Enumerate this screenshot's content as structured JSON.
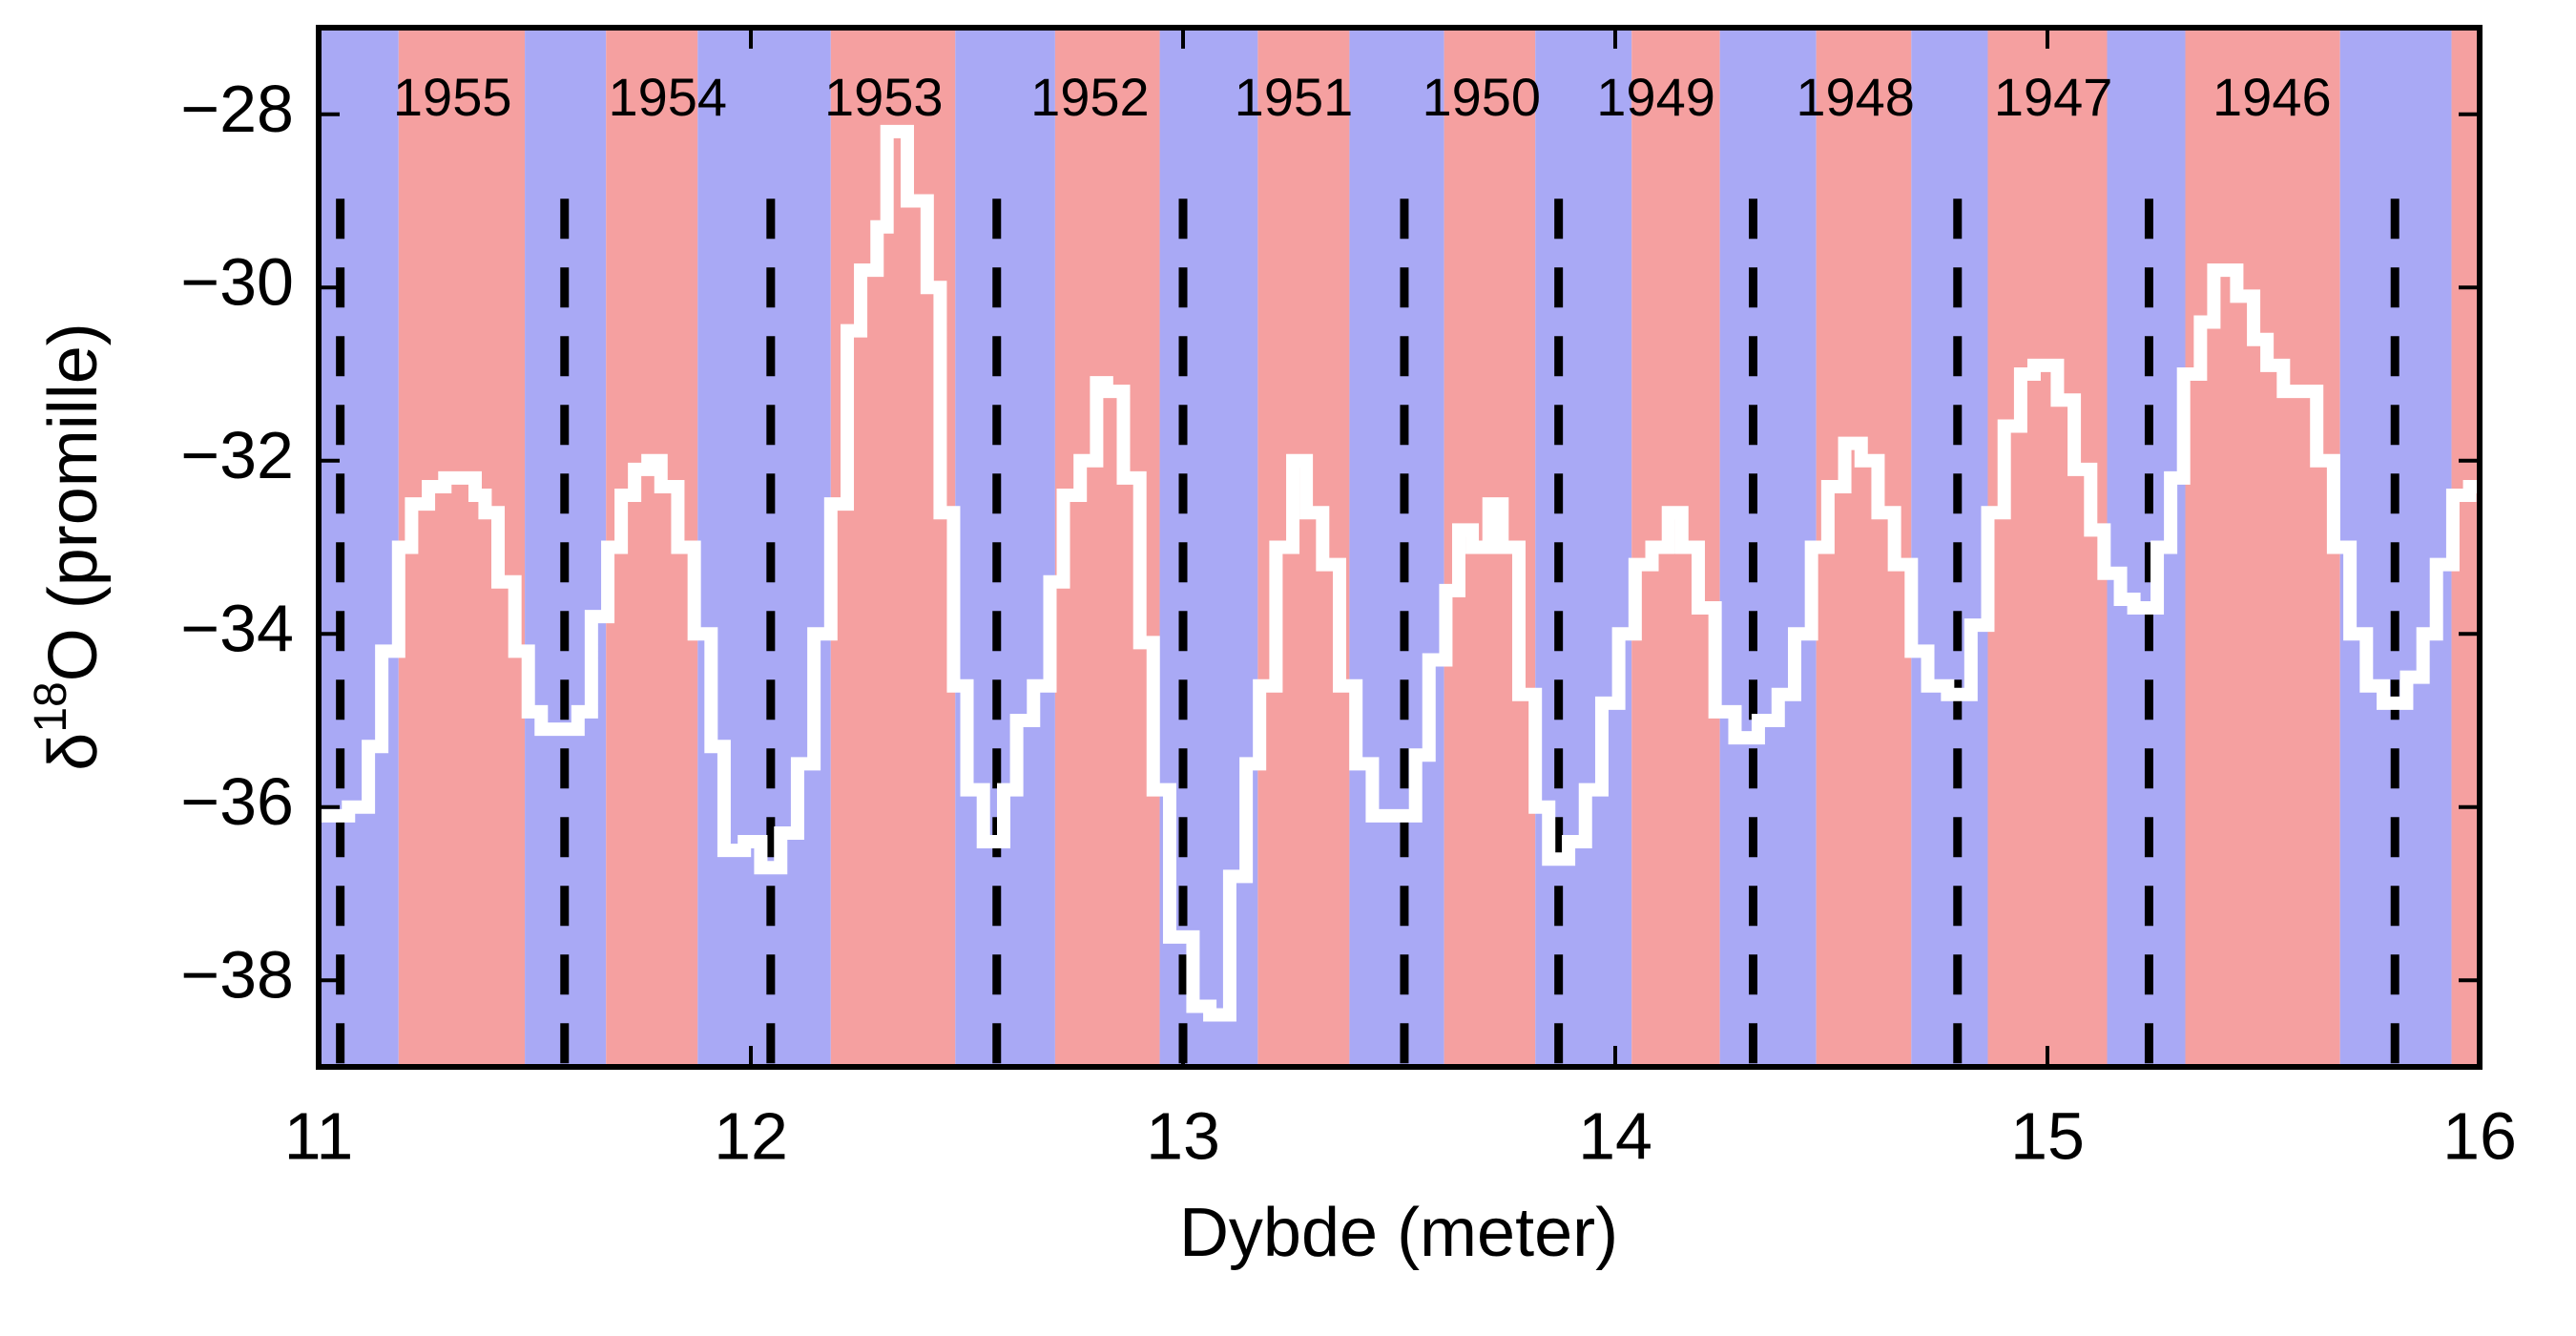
{
  "chart_data": {
    "type": "step",
    "xlabel": "Dybde (meter)",
    "ylabel": {
      "prefix": "δ",
      "superscript": "18",
      "text": "O (promille)"
    },
    "xlim": [
      11,
      16
    ],
    "ylim": [
      -39,
      -27
    ],
    "xticks": [
      11,
      12,
      13,
      14,
      15,
      16
    ],
    "yticks": [
      {
        "value": -38,
        "label": "−38"
      },
      {
        "value": -36,
        "label": "−36"
      },
      {
        "value": -34,
        "label": "−34"
      },
      {
        "value": -32,
        "label": "−32"
      },
      {
        "value": -30,
        "label": "−30"
      },
      {
        "value": -28,
        "label": "−28"
      }
    ],
    "band_edges": [
      11.185,
      11.477,
      11.665,
      11.877,
      12.185,
      12.473,
      12.704,
      12.946,
      13.173,
      13.385,
      13.604,
      13.815,
      14.038,
      14.242,
      14.465,
      14.685,
      14.862,
      15.138,
      15.319,
      15.677,
      15.935
    ],
    "band_colors": [
      "#a9a9f5",
      "#f5a0a0"
    ],
    "year_boundaries": [
      11.05,
      11.569,
      12.046,
      12.569,
      13.0,
      13.512,
      13.869,
      14.319,
      14.792,
      15.235,
      15.804
    ],
    "years": [
      "1955",
      "1954",
      "1953",
      "1952",
      "1951",
      "1950",
      "1949",
      "1948",
      "1947",
      "1946"
    ],
    "series": [
      {
        "color": "#ffffff",
        "x": [
          11.0,
          11.069,
          11.115,
          11.146,
          11.185,
          11.215,
          11.254,
          11.292,
          11.362,
          11.385,
          11.415,
          11.454,
          11.485,
          11.515,
          11.554,
          11.6,
          11.631,
          11.669,
          11.7,
          11.731,
          11.762,
          11.792,
          11.831,
          11.869,
          11.908,
          11.938,
          11.985,
          12.023,
          12.069,
          12.108,
          12.146,
          12.185,
          12.223,
          12.254,
          12.292,
          12.315,
          12.362,
          12.408,
          12.438,
          12.469,
          12.5,
          12.538,
          12.585,
          12.615,
          12.654,
          12.692,
          12.723,
          12.762,
          12.8,
          12.823,
          12.862,
          12.9,
          12.931,
          12.969,
          13.023,
          13.062,
          13.108,
          13.146,
          13.177,
          13.215,
          13.254,
          13.285,
          13.323,
          13.362,
          13.4,
          13.438,
          13.477,
          13.538,
          13.569,
          13.608,
          13.638,
          13.669,
          13.708,
          13.738,
          13.777,
          13.815,
          13.846,
          13.892,
          13.931,
          13.969,
          14.008,
          14.046,
          14.085,
          14.123,
          14.154,
          14.192,
          14.231,
          14.277,
          14.331,
          14.377,
          14.415,
          14.454,
          14.492,
          14.531,
          14.569,
          14.608,
          14.646,
          14.685,
          14.723,
          14.769,
          14.823,
          14.862,
          14.9,
          14.938,
          14.969,
          15.023,
          15.062,
          15.1,
          15.131,
          15.169,
          15.2,
          15.254,
          15.285,
          15.315,
          15.354,
          15.385,
          15.438,
          15.477,
          15.508,
          15.546,
          15.623,
          15.662,
          15.7,
          15.738,
          15.777,
          15.831,
          15.869,
          15.9,
          15.938,
          15.977
        ],
        "values": [
          -36.1,
          -36.0,
          -35.3,
          -34.2,
          -33.0,
          -32.5,
          -32.3,
          -32.2,
          -32.4,
          -32.6,
          -33.4,
          -34.2,
          -34.9,
          -35.1,
          -35.1,
          -34.9,
          -33.8,
          -33.0,
          -32.4,
          -32.1,
          -32.0,
          -32.3,
          -33.0,
          -34.0,
          -35.3,
          -36.5,
          -36.4,
          -36.7,
          -36.3,
          -35.5,
          -34.0,
          -32.5,
          -30.5,
          -29.8,
          -29.3,
          -28.2,
          -29.0,
          -30.0,
          -32.6,
          -34.6,
          -35.8,
          -36.4,
          -35.8,
          -35.0,
          -34.6,
          -33.4,
          -32.4,
          -32.0,
          -31.1,
          -31.2,
          -32.2,
          -34.1,
          -35.8,
          -37.5,
          -38.3,
          -38.4,
          -36.8,
          -35.5,
          -34.6,
          -33.0,
          -32.0,
          -32.6,
          -33.2,
          -34.6,
          -35.5,
          -36.1,
          -36.1,
          -35.4,
          -34.3,
          -33.5,
          -32.8,
          -33.0,
          -32.5,
          -33.0,
          -34.7,
          -36.0,
          -36.6,
          -36.4,
          -35.8,
          -34.8,
          -34.0,
          -33.2,
          -33.0,
          -32.6,
          -33.0,
          -33.7,
          -34.9,
          -35.2,
          -35.0,
          -34.7,
          -34.0,
          -33.0,
          -32.3,
          -31.8,
          -32.0,
          -32.6,
          -33.2,
          -34.2,
          -34.6,
          -34.7,
          -33.9,
          -32.6,
          -31.6,
          -31.0,
          -30.9,
          -31.3,
          -32.1,
          -32.8,
          -33.3,
          -33.6,
          -33.7,
          -33.0,
          -32.2,
          -31.0,
          -30.4,
          -29.8,
          -30.1,
          -30.6,
          -30.9,
          -31.2,
          -32.0,
          -33.0,
          -34.0,
          -34.6,
          -34.8,
          -34.5,
          -34.0,
          -33.2,
          -32.4,
          -32.3
        ]
      }
    ]
  }
}
